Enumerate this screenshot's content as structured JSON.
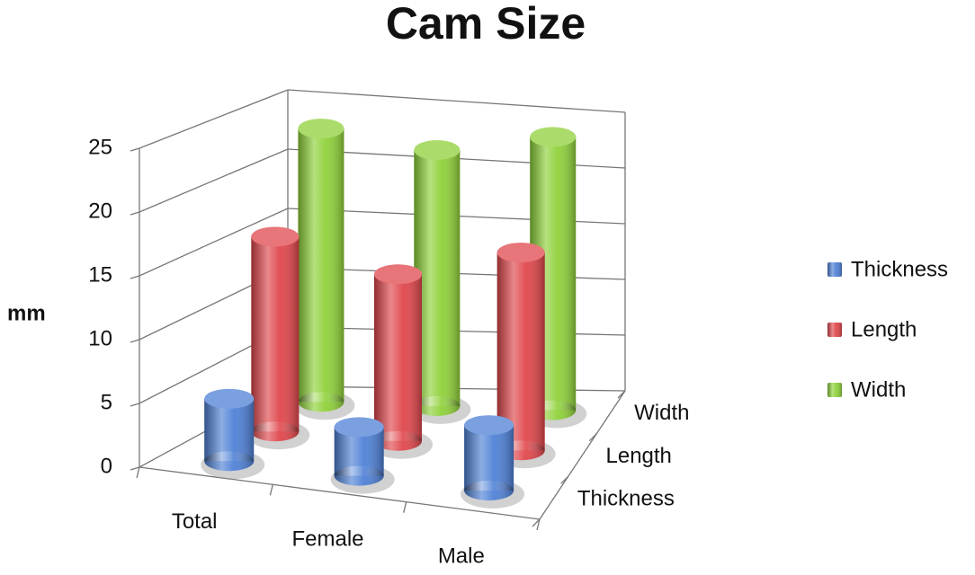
{
  "chart_data": {
    "type": "bar3d",
    "title": "Cam Size",
    "y_label": "mm",
    "categories": [
      "Total",
      "Female",
      "Male"
    ],
    "series": [
      {
        "name": "Thickness",
        "color": "#4f81d6",
        "values": [
          5,
          4,
          5.5
        ]
      },
      {
        "name": "Length",
        "color": "#e0474c",
        "values": [
          16,
          14,
          17
        ]
      },
      {
        "name": "Width",
        "color": "#8fd13a",
        "values": [
          23,
          22,
          24
        ]
      }
    ],
    "ylim": [
      0,
      25
    ],
    "yticks": [
      0,
      5,
      10,
      15,
      20,
      25
    ],
    "grid": true,
    "legend": "right"
  }
}
